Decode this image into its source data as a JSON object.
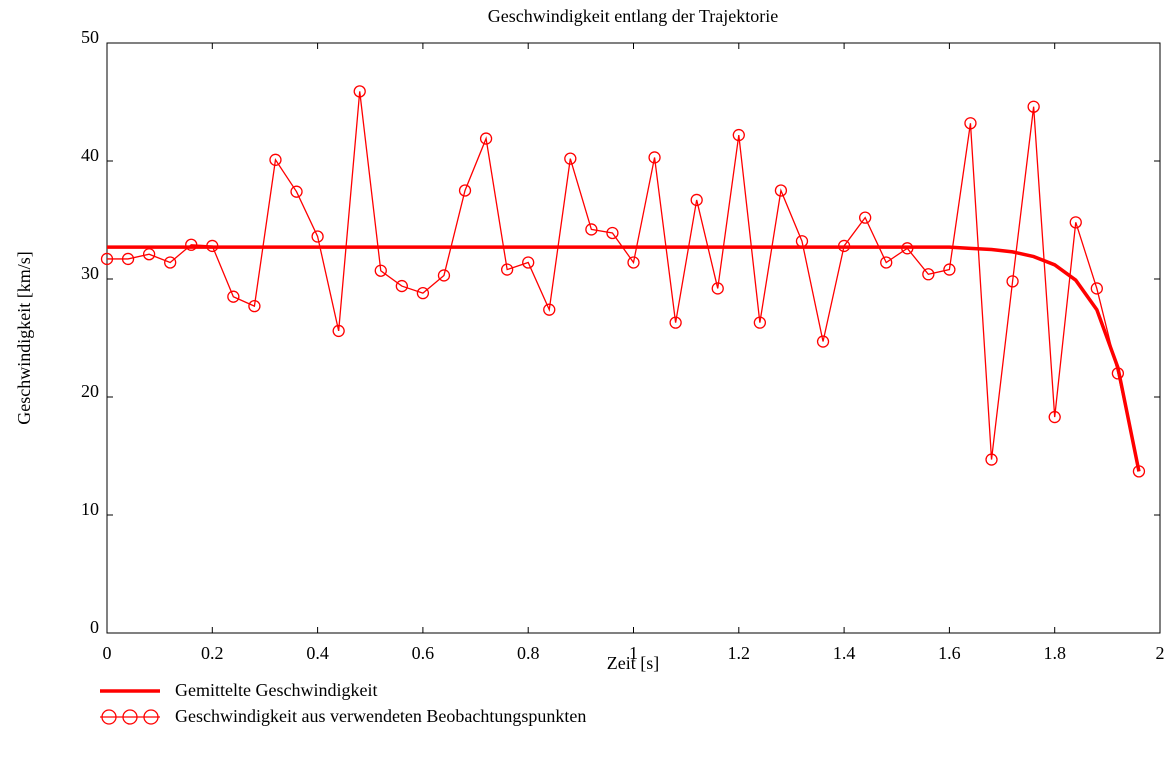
{
  "chart_data": {
    "type": "line",
    "title": "Geschwindigkeit entlang der Trajektorie",
    "xlabel": "Zeit [s]",
    "ylabel": "Geschwindigkeit [km/s]",
    "x": [
      0,
      0.04,
      0.08,
      0.12,
      0.16,
      0.2,
      0.24,
      0.28,
      0.32,
      0.36,
      0.4,
      0.44,
      0.48,
      0.52,
      0.56,
      0.6,
      0.64,
      0.68,
      0.72,
      0.76,
      0.8,
      0.84,
      0.88,
      0.92,
      0.96,
      1.0,
      1.04,
      1.08,
      1.12,
      1.16,
      1.2,
      1.24,
      1.28,
      1.32,
      1.36,
      1.4,
      1.44,
      1.48,
      1.52,
      1.56,
      1.6,
      1.64,
      1.68,
      1.72,
      1.76,
      1.8,
      1.84,
      1.88,
      1.92,
      1.96
    ],
    "series": [
      {
        "name": "Gemittelte Geschwindigkeit",
        "color": "#ff0000",
        "marker": "none",
        "values": [
          32.7,
          32.7,
          32.7,
          32.7,
          32.7,
          32.7,
          32.7,
          32.7,
          32.7,
          32.7,
          32.7,
          32.7,
          32.7,
          32.7,
          32.7,
          32.7,
          32.7,
          32.7,
          32.7,
          32.7,
          32.7,
          32.7,
          32.7,
          32.7,
          32.7,
          32.7,
          32.7,
          32.7,
          32.7,
          32.7,
          32.7,
          32.7,
          32.7,
          32.7,
          32.7,
          32.7,
          32.7,
          32.7,
          32.7,
          32.7,
          32.7,
          32.6,
          32.5,
          32.3,
          31.9,
          31.2,
          29.9,
          27.4,
          22.5,
          13.7
        ]
      },
      {
        "name": "Geschwindigkeit aus verwendeten Beobachtungspunkten",
        "color": "#ff0000",
        "marker": "circle",
        "values": [
          31.7,
          31.7,
          32.1,
          31.4,
          32.9,
          32.8,
          28.5,
          27.7,
          40.1,
          37.4,
          33.6,
          25.6,
          45.9,
          30.7,
          29.4,
          28.8,
          30.3,
          37.5,
          41.9,
          30.8,
          31.4,
          27.4,
          40.2,
          34.2,
          33.9,
          31.4,
          40.3,
          26.3,
          36.7,
          29.2,
          42.2,
          26.3,
          37.5,
          33.2,
          24.7,
          32.8,
          35.2,
          31.4,
          32.6,
          30.4,
          30.8,
          43.2,
          14.7,
          29.8,
          44.6,
          18.3,
          34.8,
          29.2,
          22.0,
          13.7
        ]
      }
    ],
    "xlim": [
      0,
      2
    ],
    "xticks": [
      0,
      0.2,
      0.4,
      0.6,
      0.8,
      1,
      1.2,
      1.4,
      1.6,
      1.8,
      2
    ],
    "ylim": [
      0,
      50
    ],
    "yticks": [
      0,
      10,
      20,
      30,
      40,
      50
    ],
    "grid": false,
    "legend": "bottom-left"
  }
}
